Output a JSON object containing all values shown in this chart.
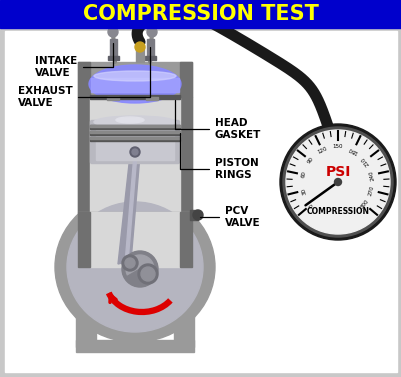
{
  "title": "COMPRESSION TEST",
  "title_bg": "#0000CC",
  "title_color": "#FFFF00",
  "bg_color": "#FFFFFF",
  "outer_bg": "#C8C8C8",
  "labels": {
    "intake_valve": "INTAKE\nVALVE",
    "exhaust_valve": "EXHAUST\nVALVE",
    "head_gasket": "HEAD\nGASKET",
    "piston_rings": "PISTON\nRINGS",
    "pcv_valve": "PCV\nVALVE",
    "psi": "PSI",
    "compression": "COMPRESSION"
  },
  "engine_gray": "#9A9A9A",
  "engine_dark": "#707070",
  "engine_light": "#C0C0C0",
  "engine_lighter": "#D8D8D8",
  "piston_silver": "#B8B8C0",
  "chamber_blue_top": "#9090FF",
  "chamber_blue_bot": "#C0C0FF",
  "hose_color": "#1A1A1A",
  "gauge_bg": "#F0F0F0",
  "red_arrow": "#DD0000",
  "gold_color": "#C8A020",
  "valve_gray": "#888888",
  "ring_dark": "#666666",
  "crank_gray": "#909090"
}
